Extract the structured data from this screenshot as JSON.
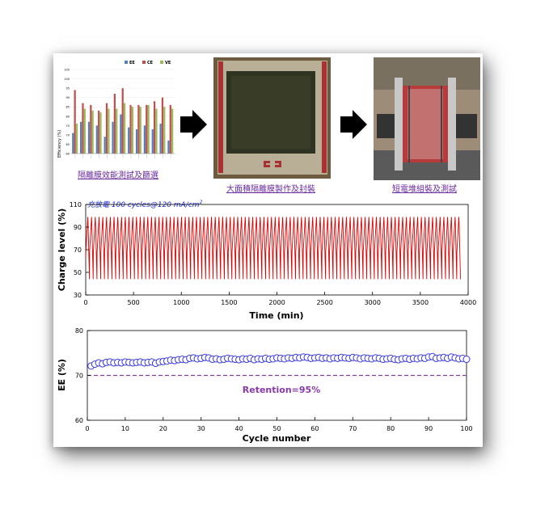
{
  "captions": {
    "membrane": "隔離膜效能測試及篩選",
    "large": "大面積隔離膜製作及封裝",
    "stack": "短電堆組裝及測試"
  },
  "colors": {
    "ee": "#4f81bd",
    "ce": "#c0504d",
    "ve": "#9bbb59",
    "charge": "#e00000",
    "ee_marker": "#3a3adc",
    "retention": "#8a3aa8"
  },
  "mini_chart": {
    "type": "bar",
    "ylabel": "Efficiency (%)",
    "ylim": [
      60,
      100
    ],
    "yticks": [
      "60",
      "65",
      "70",
      "75",
      "80",
      "85",
      "90",
      "95",
      "100",
      "105"
    ],
    "series": [
      {
        "name": "EE",
        "values": [
          71,
          77,
          77,
          75,
          69,
          77,
          81,
          74,
          73,
          75,
          73,
          76,
          67
        ]
      },
      {
        "name": "CE",
        "values": [
          94,
          87,
          86,
          83,
          87,
          92,
          95,
          86,
          86,
          86,
          88,
          90,
          86
        ]
      },
      {
        "name": "VE",
        "values": [
          76,
          84,
          83,
          82,
          84,
          84,
          87,
          85,
          85,
          86,
          84,
          85,
          84
        ]
      }
    ],
    "legend": [
      "EE",
      "CE",
      "VE"
    ]
  },
  "chart_data": [
    {
      "type": "line",
      "title": "充放電 100 cycles@120 mA/cm",
      "title_sup": "2",
      "xlabel": "Time (min)",
      "ylabel": "Charge level (%)",
      "xlim": [
        0,
        4000
      ],
      "ylim": [
        30,
        110
      ],
      "xticks": [
        "0",
        "500",
        "1000",
        "1500",
        "2000",
        "2500",
        "3000",
        "3500",
        "4000"
      ],
      "yticks": [
        "30",
        "50",
        "70",
        "90",
        "110"
      ],
      "cycles": 100,
      "cycle_period_min": 39.2,
      "upper_level": 99,
      "lower_level": 44,
      "end_time": 3920
    },
    {
      "type": "scatter",
      "xlabel": "Cycle number",
      "ylabel": "EE (%)",
      "xlim": [
        0,
        100
      ],
      "ylim": [
        60,
        80
      ],
      "xticks": [
        "0",
        "10",
        "20",
        "30",
        "40",
        "50",
        "60",
        "70",
        "80",
        "90",
        "100"
      ],
      "yticks": [
        "60",
        "70",
        "80"
      ],
      "reference_line": 70,
      "annotation": "Retention=95%",
      "x": [
        1,
        2,
        3,
        4,
        5,
        6,
        7,
        8,
        9,
        10,
        11,
        12,
        13,
        14,
        15,
        16,
        17,
        18,
        19,
        20,
        21,
        22,
        23,
        24,
        25,
        26,
        27,
        28,
        29,
        30,
        31,
        32,
        33,
        34,
        35,
        36,
        37,
        38,
        39,
        40,
        41,
        42,
        43,
        44,
        45,
        46,
        47,
        48,
        49,
        50,
        51,
        52,
        53,
        54,
        55,
        56,
        57,
        58,
        59,
        60,
        61,
        62,
        63,
        64,
        65,
        66,
        67,
        68,
        69,
        70,
        71,
        72,
        73,
        74,
        75,
        76,
        77,
        78,
        79,
        80,
        81,
        82,
        83,
        84,
        85,
        86,
        87,
        88,
        89,
        90,
        91,
        92,
        93,
        94,
        95,
        96,
        97,
        98,
        99,
        100
      ],
      "y": [
        72.1,
        72.5,
        72.8,
        72.6,
        72.9,
        73.0,
        72.8,
        72.9,
        72.8,
        73.0,
        72.9,
        72.8,
        72.9,
        73.0,
        72.8,
        72.9,
        73.0,
        72.7,
        73.0,
        73.1,
        73.2,
        73.4,
        73.3,
        73.5,
        73.6,
        73.5,
        73.8,
        73.9,
        73.7,
        73.8,
        74.0,
        73.9,
        73.6,
        73.7,
        73.5,
        73.6,
        73.8,
        73.7,
        73.6,
        73.5,
        73.7,
        73.6,
        73.8,
        73.5,
        73.7,
        73.6,
        73.8,
        73.6,
        73.7,
        73.9,
        73.8,
        73.7,
        73.9,
        73.8,
        74.0,
        73.9,
        74.1,
        74.0,
        73.8,
        73.9,
        74.0,
        73.8,
        73.9,
        73.7,
        73.9,
        73.8,
        74.0,
        73.9,
        73.8,
        74.0,
        73.9,
        73.7,
        73.9,
        73.8,
        73.7,
        73.9,
        73.8,
        73.6,
        73.7,
        73.8,
        73.6,
        73.5,
        73.7,
        73.8,
        73.6,
        73.8,
        73.7,
        73.9,
        73.8,
        74.1,
        74.2,
        73.8,
        73.9,
        74.0,
        73.8,
        74.1,
        73.9,
        73.7,
        73.8,
        73.6
      ]
    }
  ]
}
